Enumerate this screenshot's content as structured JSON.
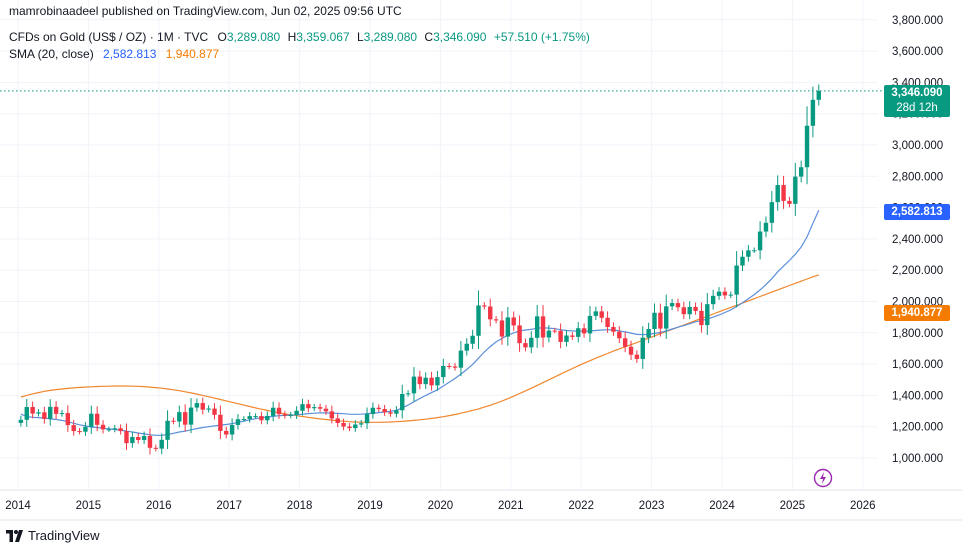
{
  "header": {
    "publisher": "mamrobinaadeel published on TradingView.com, Jun 02, 2025 09:56 UTC",
    "symbol": "CFDs on Gold (US$ / OZ) · 1M · TVC",
    "o_label": "O",
    "o_value": "3,289.080",
    "h_label": "H",
    "h_value": "3,359.067",
    "l_label": "L",
    "l_value": "3,289.080",
    "c_label": "C",
    "c_value": "3,346.090",
    "change": "+57.510 (+1.75%)",
    "sma_label": "SMA (20, close)",
    "sma_value_1": "2,582.813",
    "sma_value_2": "1,940.877"
  },
  "badges": {
    "price": "3,346.090",
    "countdown": "28d 12h",
    "sma20": "2,582.813",
    "sma100": "1,940.877"
  },
  "footer": {
    "brand": "TradingView",
    "logo_icon": "tradingview-logo-icon"
  },
  "icons": {
    "flash": "flash-icon"
  },
  "colors": {
    "up": "#089981",
    "down": "#f23645",
    "sma20": "#5b8fd9",
    "sma100": "#f0862b",
    "price_line": "#089981"
  },
  "chart_data": {
    "type": "candlestick",
    "title": "CFDs on Gold (US$ / OZ) · 1M · TVC",
    "interval": "1M",
    "x_range": [
      "2013-11",
      "2026-06"
    ],
    "y_range": [
      850,
      3850
    ],
    "yticks": [
      1000,
      1200,
      1400,
      1600,
      1800,
      2000,
      2200,
      2400,
      2600,
      2800,
      3000,
      3200,
      3400,
      3600,
      3800
    ],
    "ytick_labels": [
      "1,000.000",
      "1,200.000",
      "1,400.000",
      "1,600.000",
      "1,800.000",
      "2,000.000",
      "2,200.000",
      "2,400.000",
      "2,600.000",
      "2,800.000",
      "3,000.000",
      "3,200.000",
      "3,400.000",
      "3,600.000",
      "3,800.000"
    ],
    "xticks": [
      "2014",
      "2015",
      "2016",
      "2017",
      "2018",
      "2019",
      "2020",
      "2021",
      "2022",
      "2023",
      "2024",
      "2025",
      "2026"
    ],
    "last_price": 3346.09,
    "start_month": "2014-01",
    "closes": [
      1244,
      1326,
      1284,
      1292,
      1250,
      1327,
      1282,
      1287,
      1210,
      1172,
      1168,
      1199,
      1283,
      1212,
      1183,
      1183,
      1190,
      1172,
      1095,
      1134,
      1115,
      1141,
      1065,
      1060,
      1116,
      1238,
      1233,
      1293,
      1213,
      1322,
      1351,
      1309,
      1316,
      1276,
      1173,
      1150,
      1211,
      1248,
      1249,
      1268,
      1268,
      1241,
      1269,
      1321,
      1280,
      1271,
      1275,
      1302,
      1344,
      1318,
      1325,
      1315,
      1298,
      1253,
      1224,
      1201,
      1191,
      1214,
      1222,
      1281,
      1321,
      1313,
      1292,
      1283,
      1305,
      1409,
      1413,
      1520,
      1472,
      1513,
      1464,
      1517,
      1588,
      1585,
      1577,
      1686,
      1730,
      1781,
      1975,
      1968,
      1886,
      1879,
      1776,
      1898,
      1847,
      1734,
      1707,
      1768,
      1905,
      1770,
      1814,
      1813,
      1742,
      1783,
      1774,
      1829,
      1796,
      1908,
      1937,
      1896,
      1837,
      1807,
      1765,
      1711,
      1660,
      1633,
      1769,
      1824,
      1928,
      1827,
      1969,
      1990,
      1963,
      1919,
      1965,
      1940,
      1849,
      1983,
      2036,
      2063,
      2039,
      2044,
      2230,
      2286,
      2327,
      2327,
      2447,
      2503,
      2635,
      2744,
      2643,
      2624,
      2798,
      2858,
      3123,
      3289,
      3346
    ],
    "sma20": [
      1280,
      1265,
      1260,
      1258,
      1255,
      1250,
      1246,
      1240,
      1232,
      1222,
      1212,
      1205,
      1198,
      1195,
      1190,
      1186,
      1182,
      1178,
      1172,
      1166,
      1160,
      1154,
      1148,
      1145,
      1145,
      1150,
      1158,
      1166,
      1172,
      1180,
      1188,
      1195,
      1200,
      1205,
      1210,
      1214,
      1220,
      1228,
      1236,
      1244,
      1252,
      1258,
      1262,
      1266,
      1270,
      1272,
      1274,
      1276,
      1280,
      1284,
      1286,
      1288,
      1288,
      1287,
      1285,
      1283,
      1280,
      1279,
      1280,
      1283,
      1286,
      1290,
      1294,
      1298,
      1305,
      1320,
      1338,
      1360,
      1380,
      1400,
      1418,
      1436,
      1460,
      1484,
      1508,
      1536,
      1566,
      1598,
      1638,
      1678,
      1712,
      1742,
      1764,
      1784,
      1800,
      1812,
      1818,
      1822,
      1830,
      1832,
      1830,
      1826,
      1820,
      1815,
      1812,
      1810,
      1810,
      1812,
      1815,
      1818,
      1820,
      1818,
      1812,
      1806,
      1798,
      1790,
      1788,
      1790,
      1796,
      1802,
      1812,
      1824,
      1836,
      1846,
      1858,
      1870,
      1878,
      1888,
      1900,
      1914,
      1930,
      1946,
      1968,
      1992,
      2018,
      2044,
      2074,
      2108,
      2146,
      2190,
      2226,
      2262,
      2302,
      2348,
      2412,
      2500,
      2583
    ],
    "sma100": [
      1390,
      1400,
      1410,
      1418,
      1426,
      1432,
      1437,
      1441,
      1445,
      1448,
      1451,
      1453,
      1455,
      1457,
      1458,
      1459,
      1460,
      1460,
      1460,
      1459,
      1458,
      1456,
      1453,
      1450,
      1446,
      1441,
      1436,
      1430,
      1423,
      1416,
      1408,
      1400,
      1392,
      1383,
      1374,
      1365,
      1356,
      1347,
      1338,
      1329,
      1320,
      1312,
      1304,
      1296,
      1289,
      1282,
      1276,
      1270,
      1265,
      1260,
      1255,
      1250,
      1246,
      1242,
      1238,
      1235,
      1232,
      1230,
      1229,
      1228,
      1228,
      1228,
      1229,
      1230,
      1232,
      1234,
      1237,
      1240,
      1244,
      1248,
      1253,
      1258,
      1264,
      1271,
      1278,
      1286,
      1295,
      1304,
      1314,
      1325,
      1337,
      1350,
      1364,
      1379,
      1395,
      1412,
      1429,
      1446,
      1464,
      1482,
      1500,
      1518,
      1536,
      1554,
      1572,
      1589,
      1606,
      1622,
      1638,
      1653,
      1668,
      1683,
      1697,
      1711,
      1724,
      1738,
      1752,
      1766,
      1780,
      1794,
      1808,
      1822,
      1836,
      1850,
      1864,
      1878,
      1892,
      1906,
      1920,
      1934,
      1948,
      1962,
      1976,
      1990,
      2004,
      2018,
      2032,
      2046,
      2060,
      2074,
      2088,
      2102,
      2116,
      2130,
      2144,
      2158,
      1941
    ]
  }
}
